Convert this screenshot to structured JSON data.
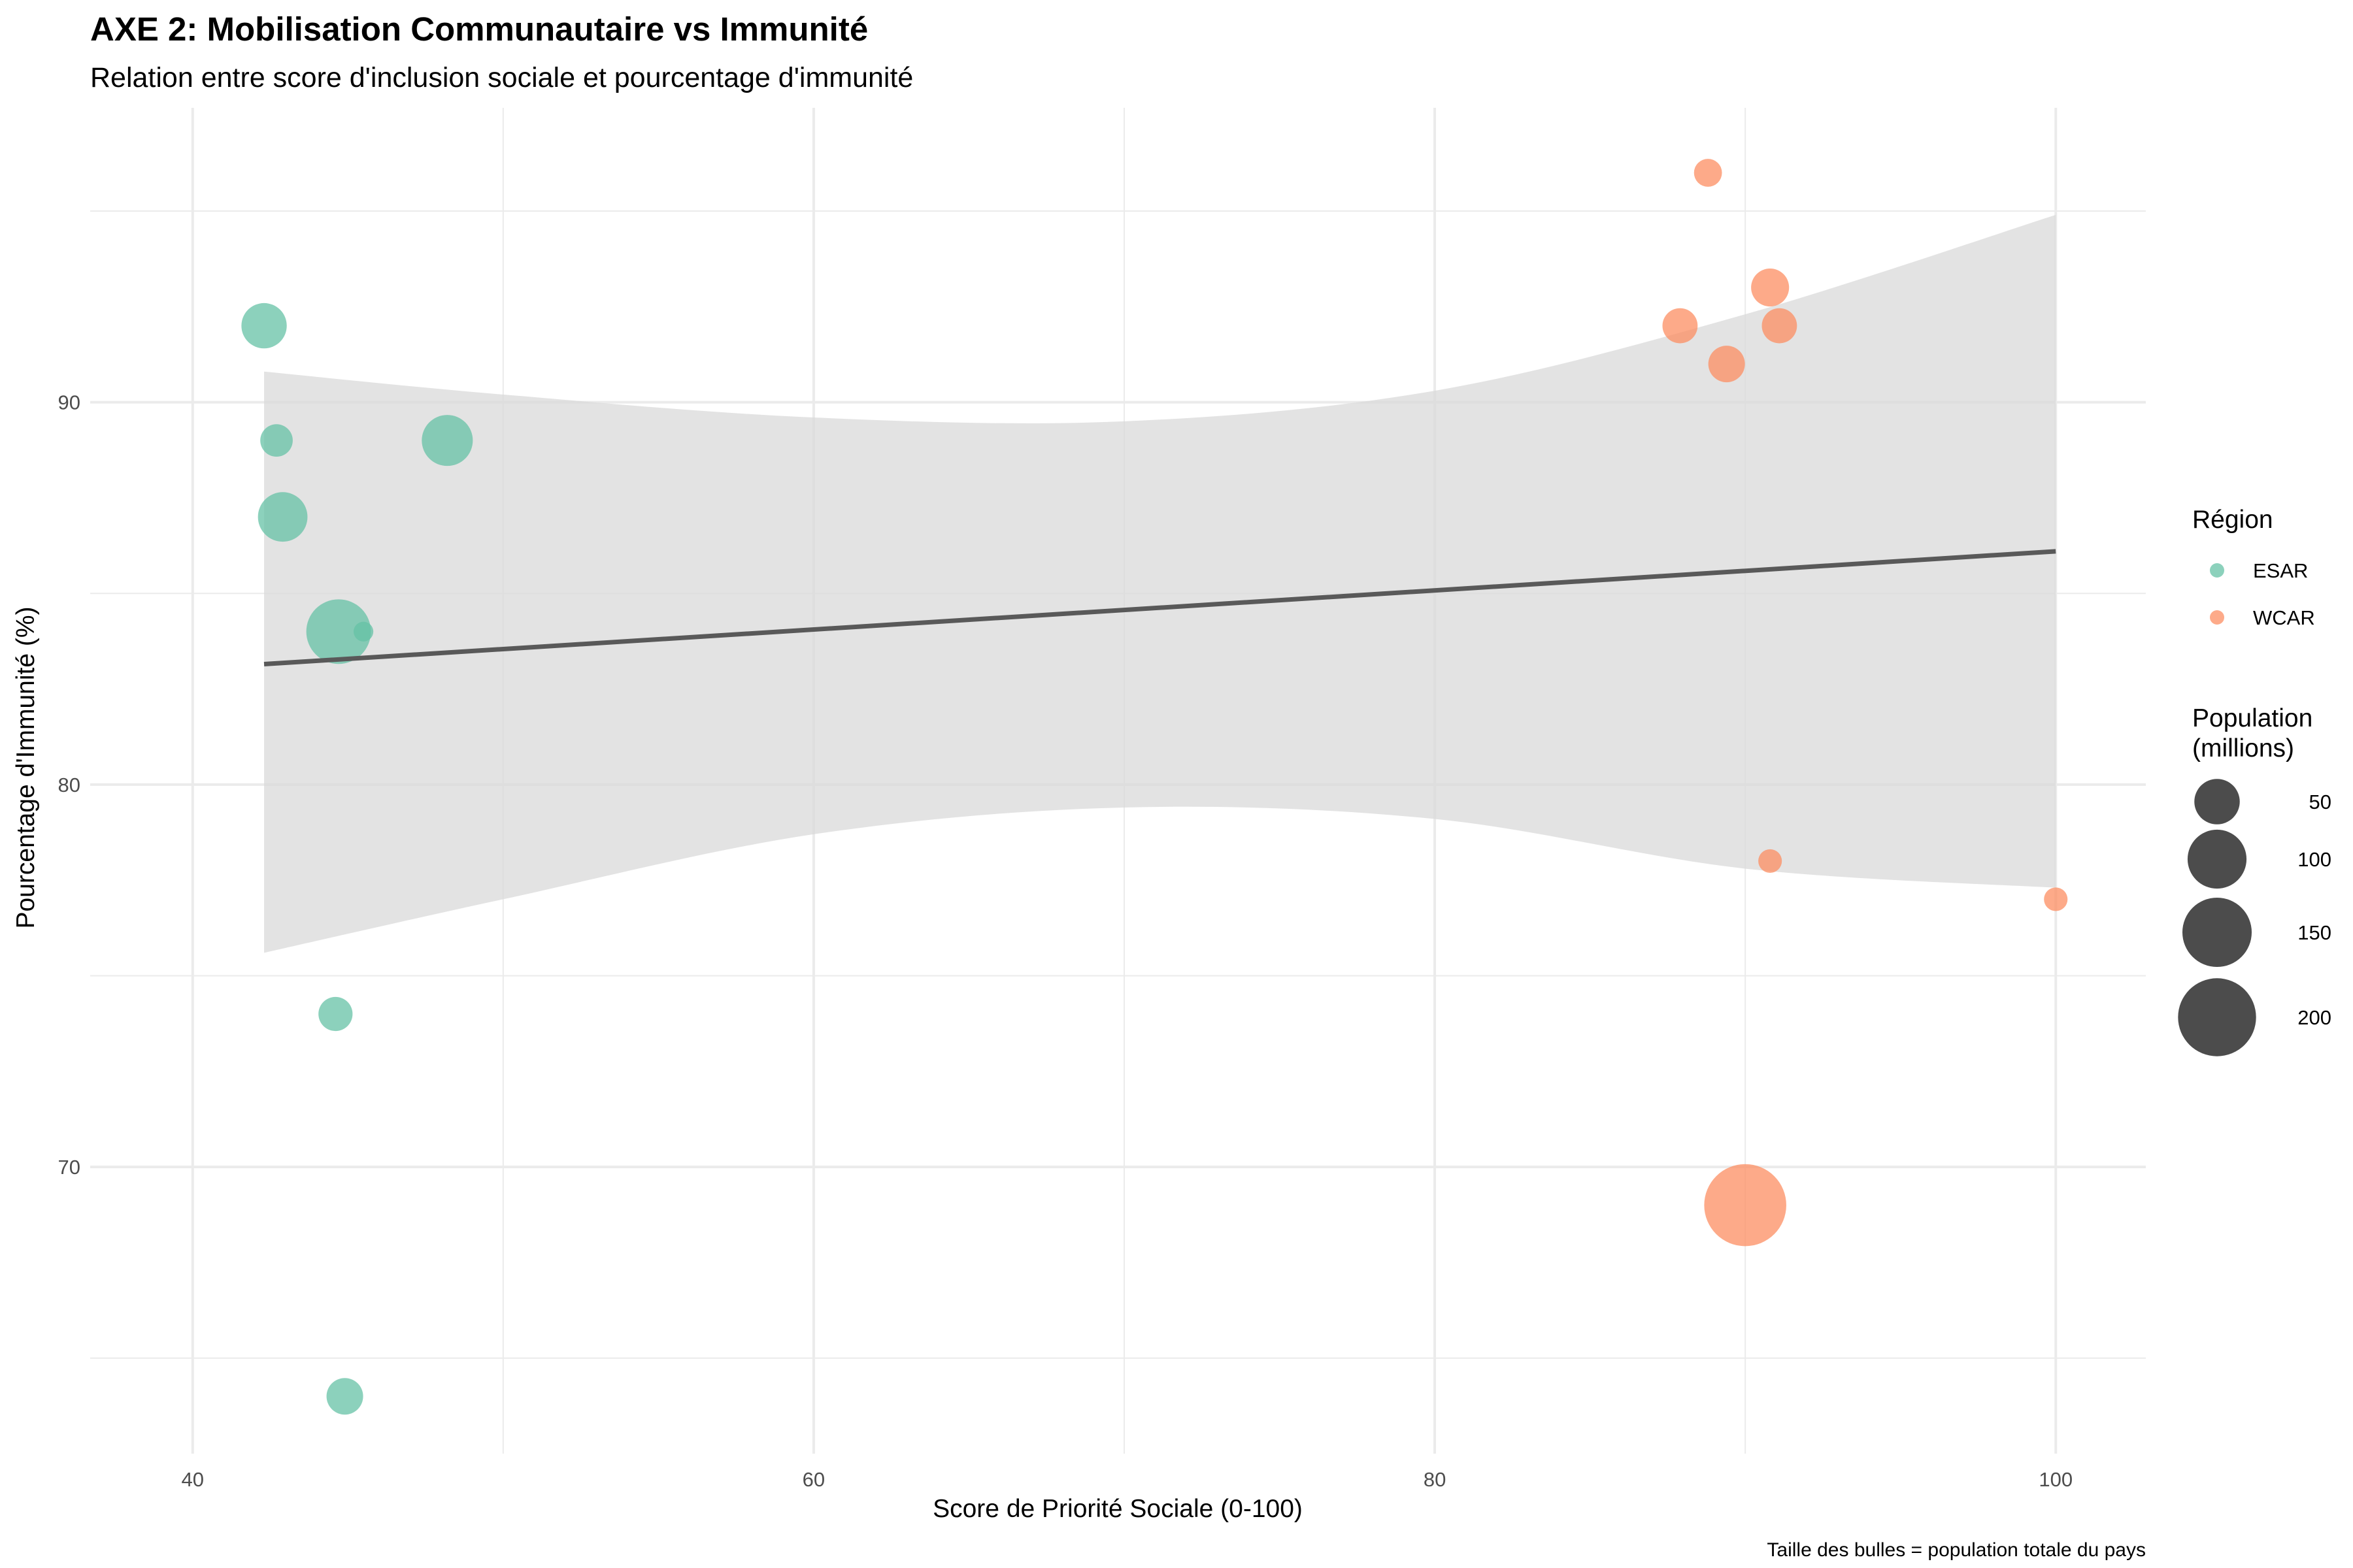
{
  "chart_data": {
    "type": "scatter",
    "title": "AXE 2: Mobilisation Communautaire vs Immunité",
    "subtitle": "Relation entre score d'inclusion sociale et pourcentage d'immunité",
    "xlabel": "Score de Priorité Sociale (0-100)",
    "ylabel": "Pourcentage d'Immunité (%)",
    "caption": "Taille des bulles = population totale du pays",
    "xlim": [
      36.7,
      102.9
    ],
    "ylim": [
      62.5,
      97.7
    ],
    "x_ticks": [
      40,
      60,
      80,
      100
    ],
    "y_ticks": [
      70,
      80,
      90
    ],
    "grid": true,
    "colors": {
      "ESAR": "#66C2A5",
      "WCAR": "#FC8D62",
      "trend": "#595959",
      "ribbon": "#d9d9d9",
      "grid": "#ebebeb"
    },
    "legend": {
      "color_title": "Région",
      "color_items": [
        "ESAR",
        "WCAR"
      ],
      "size_title": [
        "Population",
        "(millions)"
      ],
      "size_items": [
        50,
        100,
        150,
        200
      ],
      "position": "right"
    },
    "series": [
      {
        "name": "ESAR",
        "points": [
          {
            "x": 42.3,
            "y": 92,
            "pop": 47
          },
          {
            "x": 42.7,
            "y": 89,
            "pop": 17
          },
          {
            "x": 42.9,
            "y": 87,
            "pop": 60
          },
          {
            "x": 44.7,
            "y": 84,
            "pop": 120
          },
          {
            "x": 45.5,
            "y": 84,
            "pop": 2
          },
          {
            "x": 48.2,
            "y": 89,
            "pop": 65
          },
          {
            "x": 44.6,
            "y": 74,
            "pop": 20
          },
          {
            "x": 44.9,
            "y": 64,
            "pop": 25
          }
        ]
      },
      {
        "name": "WCAR",
        "points": [
          {
            "x": 88.8,
            "y": 96,
            "pop": 10
          },
          {
            "x": 90.8,
            "y": 93,
            "pop": 28
          },
          {
            "x": 87.9,
            "y": 92,
            "pop": 22
          },
          {
            "x": 91.1,
            "y": 92,
            "pop": 22
          },
          {
            "x": 89.4,
            "y": 91,
            "pop": 25
          },
          {
            "x": 90.8,
            "y": 78,
            "pop": 5
          },
          {
            "x": 100,
            "y": 77,
            "pop": 5
          },
          {
            "x": 90,
            "y": 69,
            "pop": 215
          }
        ]
      }
    ],
    "trend": {
      "x0": 42.3,
      "y0": 83.15,
      "x1": 100,
      "y1": 86.1,
      "ci_upper": [
        [
          42.3,
          90.8
        ],
        [
          50,
          90.2
        ],
        [
          60,
          89.6
        ],
        [
          70,
          89.5
        ],
        [
          80,
          90.3
        ],
        [
          90,
          92.3
        ],
        [
          100,
          94.9
        ]
      ],
      "ci_lower": [
        [
          42.3,
          75.6
        ],
        [
          50,
          77.0
        ],
        [
          60,
          78.7
        ],
        [
          70,
          79.4
        ],
        [
          80,
          79.1
        ],
        [
          90,
          77.8
        ],
        [
          100,
          77.3
        ]
      ]
    }
  }
}
